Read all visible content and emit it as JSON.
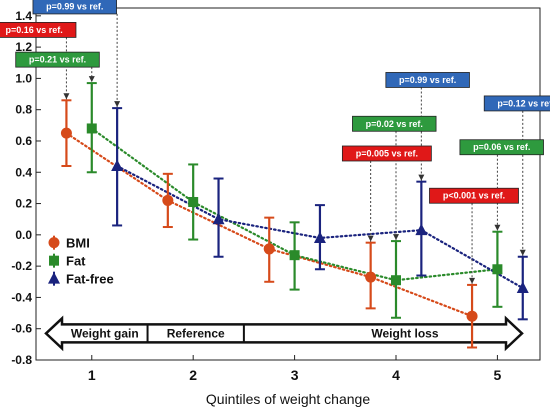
{
  "chart_data": {
    "type": "scatter",
    "title": "",
    "xlabel": "Quintiles of weight change",
    "ylabel": "",
    "x": [
      1,
      2,
      3,
      4,
      5
    ],
    "x_tick_labels": [
      "1",
      "2",
      "3",
      "4",
      "5"
    ],
    "ylim": [
      -0.8,
      1.45
    ],
    "y_ticks": [
      -0.8,
      -0.6,
      -0.4,
      -0.2,
      0.0,
      0.2,
      0.4,
      0.6,
      0.8,
      1.0,
      1.2,
      1.4
    ],
    "y_tick_labels": [
      "-0.8",
      "-0.6",
      "-0.4",
      "-0.2",
      "0.0",
      "0.2",
      "0.4",
      "0.6",
      "0.8",
      "1.0",
      "1.2",
      "1.4"
    ],
    "grid": false,
    "legend_position": "left",
    "series": [
      {
        "name": "BMI",
        "color": "#d64a1a",
        "marker": "circle",
        "values": [
          0.65,
          0.22,
          -0.09,
          -0.27,
          -0.52
        ],
        "ci_low": [
          0.44,
          0.05,
          -0.3,
          -0.47,
          -0.72
        ],
        "ci_high": [
          0.86,
          0.39,
          0.11,
          -0.05,
          -0.32
        ],
        "pvalues": [
          "p=0.16 vs ref.",
          "",
          "",
          "p=0.005 vs ref.",
          "p<0.001 vs ref."
        ]
      },
      {
        "name": "Fat",
        "color": "#2a8a2a",
        "marker": "square",
        "values": [
          0.68,
          0.21,
          -0.13,
          -0.29,
          -0.22
        ],
        "ci_low": [
          0.4,
          -0.03,
          -0.35,
          -0.53,
          -0.46
        ],
        "ci_high": [
          0.97,
          0.45,
          0.08,
          -0.04,
          0.02
        ],
        "pvalues": [
          "p=0.21 vs ref.",
          "",
          "",
          "p=0.02 vs ref.",
          "p=0.06 vs ref."
        ]
      },
      {
        "name": "Fat-free",
        "color": "#1a237e",
        "marker": "triangle",
        "values": [
          0.44,
          0.1,
          -0.02,
          0.03,
          -0.34
        ],
        "ci_low": [
          0.06,
          -0.14,
          -0.22,
          -0.26,
          -0.54
        ],
        "ci_high": [
          0.81,
          0.36,
          0.19,
          0.34,
          -0.14
        ],
        "pvalues": [
          "p=0.99 vs ref.",
          "",
          "",
          "p=0.99 vs ref.",
          "p=0.12 vs ref."
        ]
      }
    ],
    "pvalue_box_colors": {
      "BMI": "#e01818",
      "Fat": "#2e9a3e",
      "Fat-free": "#3068b8"
    },
    "arrow_labels": {
      "weight_gain": "Weight gain",
      "reference": "Reference",
      "weight_loss": "Weight loss"
    }
  }
}
